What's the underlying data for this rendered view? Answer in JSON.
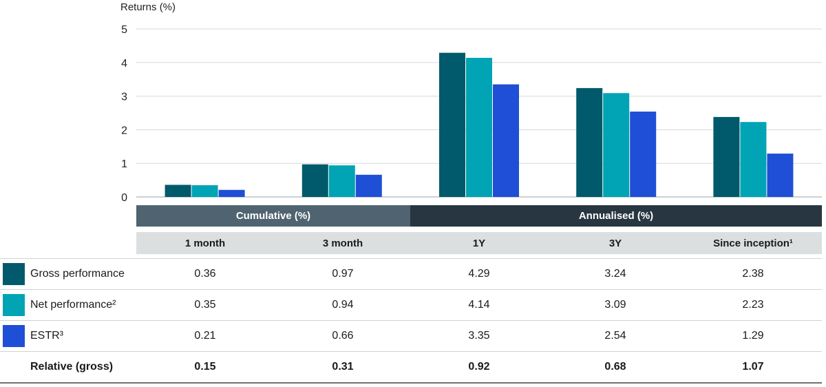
{
  "chart_data": {
    "type": "bar",
    "ylabel": "Returns (%)",
    "ylim": [
      0,
      5
    ],
    "yticks": [
      "0",
      "1",
      "2",
      "3",
      "4",
      "5"
    ],
    "categories": [
      "1 month",
      "3 month",
      "1Y",
      "3Y",
      "Since inception¹"
    ],
    "series": [
      {
        "name": "Gross performance",
        "values": [
          0.36,
          0.97,
          4.29,
          3.24,
          2.38
        ],
        "color": "#005a6b"
      },
      {
        "name": "Net performance²",
        "values": [
          0.35,
          0.94,
          4.14,
          3.09,
          2.23
        ],
        "color": "#00a4b4"
      },
      {
        "name": "ESTR³",
        "values": [
          0.21,
          0.66,
          3.35,
          2.54,
          1.29
        ],
        "color": "#1f4fd6"
      }
    ],
    "grid": true
  },
  "groups": {
    "cumulative": "Cumulative (%)",
    "annualised": "Annualised (%)"
  },
  "table": {
    "columns": [
      "1 month",
      "3 month",
      "1Y",
      "3Y",
      "Since inception¹"
    ],
    "rows": [
      {
        "label": "Gross performance",
        "cells": [
          "0.36",
          "0.97",
          "4.29",
          "3.24",
          "2.38"
        ]
      },
      {
        "label": "Net performance²",
        "cells": [
          "0.35",
          "0.94",
          "4.14",
          "3.09",
          "2.23"
        ]
      },
      {
        "label": "ESTR³",
        "cells": [
          "0.21",
          "0.66",
          "3.35",
          "2.54",
          "1.29"
        ]
      },
      {
        "label": "Relative (gross)",
        "cells": [
          "0.15",
          "0.31",
          "0.92",
          "0.68",
          "1.07"
        ]
      }
    ]
  }
}
